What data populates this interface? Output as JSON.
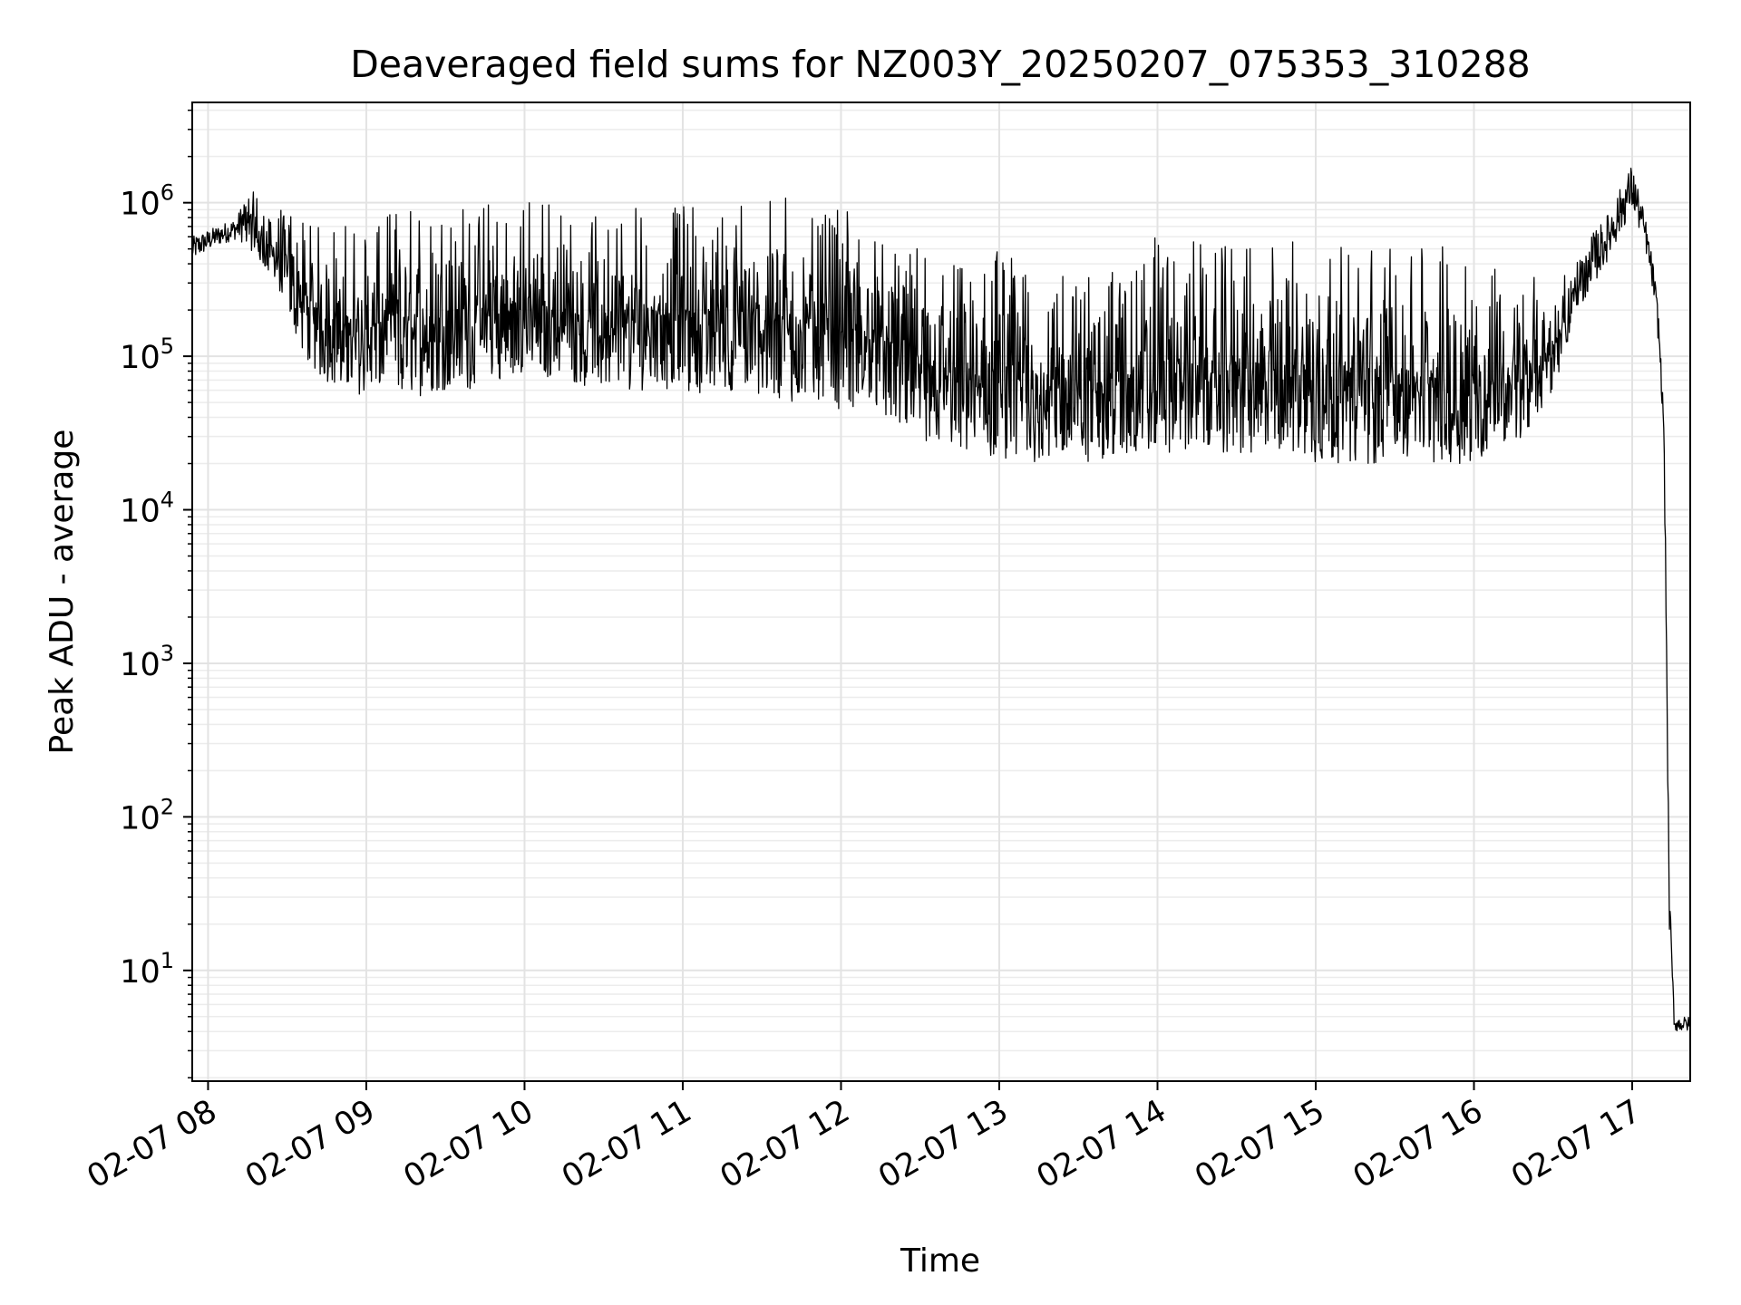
{
  "chart_data": {
    "type": "line",
    "title": "Deaveraged field sums for NZ003Y_20250207_075353_310288",
    "xlabel": "Time",
    "ylabel": "Peak ADU - average",
    "yscale": "log",
    "grid": true,
    "line_color": "#000000",
    "x_ticks": [
      "02-07 08",
      "02-07 09",
      "02-07 10",
      "02-07 11",
      "02-07 12",
      "02-07 13",
      "02-07 14",
      "02-07 15",
      "02-07 16",
      "02-07 17"
    ],
    "y_ticks": [
      {
        "base": "10",
        "exp": "1"
      },
      {
        "base": "10",
        "exp": "2"
      },
      {
        "base": "10",
        "exp": "3"
      },
      {
        "base": "10",
        "exp": "4"
      },
      {
        "base": "10",
        "exp": "5"
      },
      {
        "base": "10",
        "exp": "6"
      }
    ],
    "xlim": [
      "2025-02-07 07:54",
      "2025-02-07 17:22"
    ],
    "ylim": [
      1.9,
      4500000
    ],
    "series": [
      {
        "x": [
          "2025-02-07 07:54",
          "2025-02-07 08:03",
          "2025-02-07 08:11",
          "2025-02-07 08:16",
          "2025-02-07 08:20",
          "2025-02-07 08:26",
          "2025-02-07 08:32",
          "2025-02-07 08:38",
          "2025-02-07 08:44",
          "2025-02-07 08:50",
          "2025-02-07 09:00",
          "2025-02-07 09:10",
          "2025-02-07 09:20",
          "2025-02-07 09:30",
          "2025-02-07 09:40",
          "2025-02-07 09:50",
          "2025-02-07 10:00",
          "2025-02-07 10:10",
          "2025-02-07 10:20",
          "2025-02-07 10:30",
          "2025-02-07 10:40",
          "2025-02-07 10:50",
          "2025-02-07 11:00",
          "2025-02-07 11:10",
          "2025-02-07 11:20",
          "2025-02-07 11:30",
          "2025-02-07 11:40",
          "2025-02-07 11:50",
          "2025-02-07 12:00",
          "2025-02-07 12:10",
          "2025-02-07 12:20",
          "2025-02-07 12:30",
          "2025-02-07 12:40",
          "2025-02-07 12:50",
          "2025-02-07 13:00",
          "2025-02-07 13:10",
          "2025-02-07 13:20",
          "2025-02-07 13:30",
          "2025-02-07 13:40",
          "2025-02-07 13:50",
          "2025-02-07 14:00",
          "2025-02-07 14:10",
          "2025-02-07 14:20",
          "2025-02-07 14:30",
          "2025-02-07 14:40",
          "2025-02-07 14:50",
          "2025-02-07 15:00",
          "2025-02-07 15:10",
          "2025-02-07 15:20",
          "2025-02-07 15:30",
          "2025-02-07 15:40",
          "2025-02-07 15:50",
          "2025-02-07 16:00",
          "2025-02-07 16:10",
          "2025-02-07 16:20",
          "2025-02-07 16:30",
          "2025-02-07 16:40",
          "2025-02-07 16:50",
          "2025-02-07 17:00",
          "2025-02-07 17:05",
          "2025-02-07 17:08",
          "2025-02-07 17:10",
          "2025-02-07 17:12",
          "2025-02-07 17:13",
          "2025-02-07 17:14",
          "2025-02-07 17:16",
          "2025-02-07 17:22"
        ],
        "y_low": [
          420000,
          520000,
          580000,
          500000,
          400000,
          300000,
          150000,
          90000,
          70000,
          60000,
          55000,
          55000,
          55000,
          60000,
          60000,
          70000,
          80000,
          70000,
          65000,
          60000,
          60000,
          60000,
          55000,
          55000,
          60000,
          55000,
          50000,
          50000,
          45000,
          45000,
          35000,
          28000,
          25000,
          22000,
          22000,
          20000,
          20000,
          20000,
          20000,
          22000,
          25000,
          22000,
          22000,
          22000,
          20000,
          22000,
          20000,
          20000,
          20000,
          20000,
          20000,
          20000,
          20000,
          25000,
          30000,
          60000,
          200000,
          400000,
          900000,
          500000,
          250000,
          120000,
          30000,
          1000,
          20,
          4,
          4
        ],
        "y_high": [
          600000,
          700000,
          800000,
          1500000,
          1000000,
          900000,
          900000,
          800000,
          800000,
          700000,
          800000,
          900000,
          1000000,
          1100000,
          1000000,
          1000000,
          1100000,
          1000000,
          900000,
          800000,
          900000,
          1000000,
          1200000,
          1000000,
          1000000,
          1100000,
          1200000,
          1100000,
          1000000,
          800000,
          600000,
          500000,
          450000,
          400000,
          500000,
          500000,
          400000,
          350000,
          400000,
          500000,
          600000,
          600000,
          550000,
          600000,
          600000,
          600000,
          600000,
          550000,
          500000,
          550000,
          500000,
          550000,
          450000,
          400000,
          350000,
          300000,
          500000,
          800000,
          1800000,
          800000,
          400000,
          200000,
          40000,
          2000,
          40,
          5,
          5
        ]
      }
    ]
  }
}
